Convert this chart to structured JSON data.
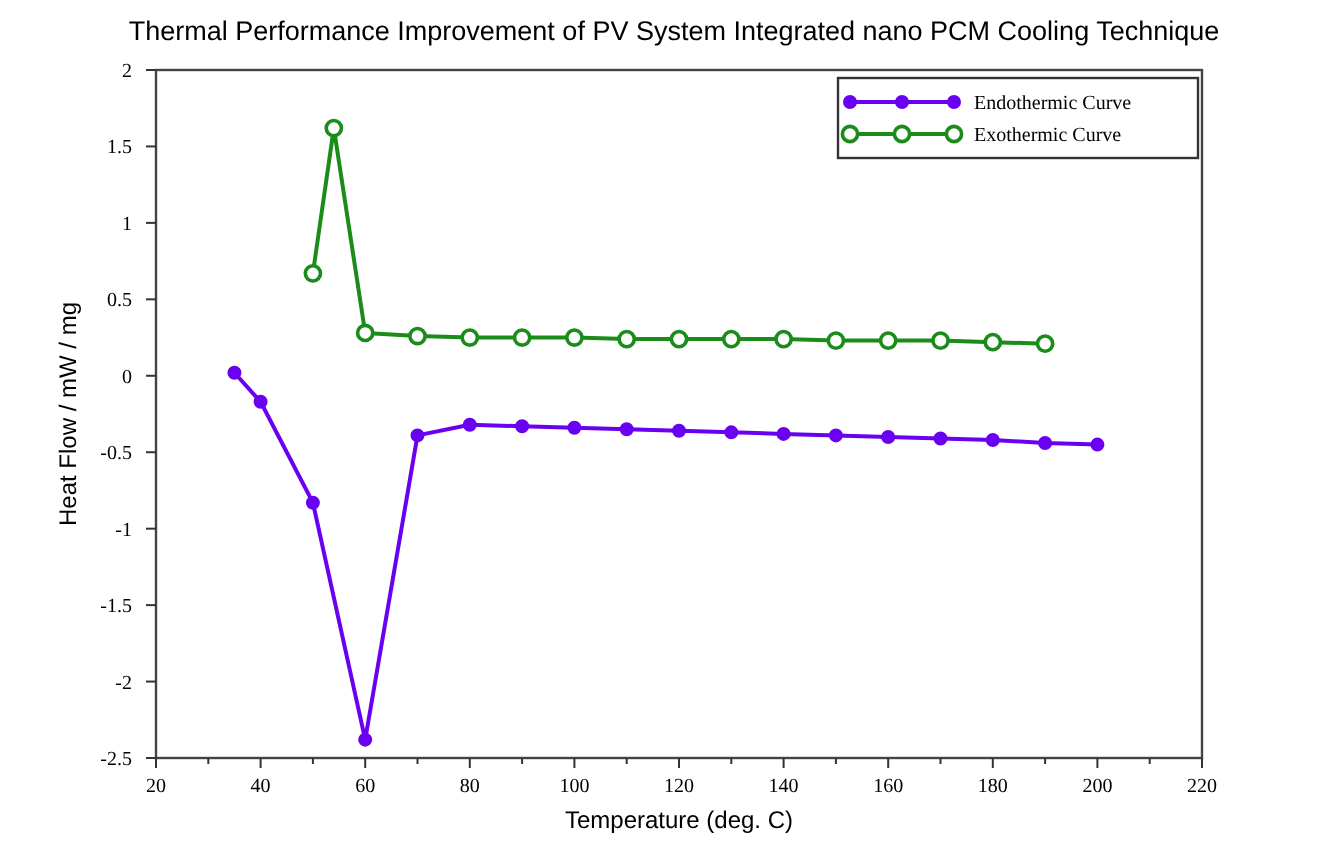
{
  "chart_data": {
    "type": "line",
    "title": "Thermal Performance Improvement of PV System Integrated nano PCM Cooling Technique",
    "xlabel": "Temperature (deg. C)",
    "ylabel": "Heat Flow / mW / mg",
    "xlim": [
      20,
      220
    ],
    "xticks": [
      20,
      40,
      60,
      80,
      100,
      120,
      140,
      160,
      180,
      200,
      220
    ],
    "ylim": [
      -2.5,
      2
    ],
    "yticks": [
      -2.5,
      -2,
      -1.5,
      -1,
      -0.5,
      0,
      0.5,
      1,
      1.5,
      2
    ],
    "grid": false,
    "legend": "top right",
    "series": [
      {
        "name": "Endothermic Curve",
        "color": "#6a00f0",
        "marker": "circle",
        "x": [
          35,
          40,
          50,
          60,
          70,
          80,
          90,
          100,
          110,
          120,
          130,
          140,
          150,
          160,
          170,
          180,
          190,
          200
        ],
        "values": [
          0.02,
          -0.17,
          -0.83,
          -2.38,
          -0.39,
          -0.32,
          -0.33,
          -0.34,
          -0.35,
          -0.36,
          -0.37,
          -0.38,
          -0.39,
          -0.4,
          -0.41,
          -0.42,
          -0.44,
          -0.45
        ]
      },
      {
        "name": "Exothermic Curve",
        "color": "#1a8c1a",
        "marker": "open_circle",
        "x": [
          50,
          54,
          60,
          70,
          80,
          90,
          100,
          110,
          120,
          130,
          140,
          150,
          160,
          170,
          180,
          190
        ],
        "values": [
          0.67,
          1.62,
          0.28,
          0.26,
          0.25,
          0.25,
          0.25,
          0.24,
          0.24,
          0.24,
          0.24,
          0.23,
          0.23,
          0.23,
          0.22,
          0.21
        ]
      }
    ]
  }
}
